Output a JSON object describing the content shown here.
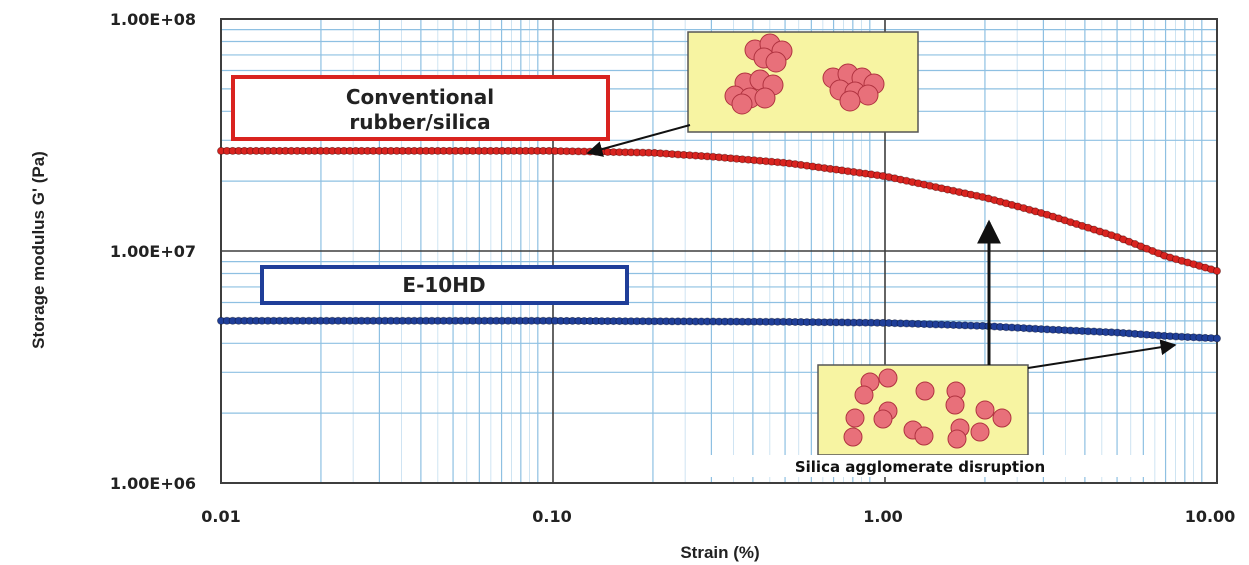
{
  "chart_data": {
    "type": "line",
    "xlabel": "Strain (%)",
    "ylabel": "Storage modulus G' (Pa)",
    "x_scale": "log",
    "y_scale": "log",
    "xlim": [
      0.01,
      10.0
    ],
    "ylim": [
      1000000,
      100000000
    ],
    "x_ticks": [
      "0.01",
      "0.10",
      "1.00",
      "10.00"
    ],
    "y_ticks": [
      "1.00E+08",
      "1.00E+07",
      "1.00E+06"
    ],
    "grid": true,
    "series": [
      {
        "name": "Conventional rubber/silica",
        "color": "#d9231f",
        "points": [
          [
            0.01,
            27000000
          ],
          [
            0.02,
            27000000
          ],
          [
            0.05,
            27000000
          ],
          [
            0.1,
            27000000
          ],
          [
            0.2,
            26500000
          ],
          [
            0.3,
            25500000
          ],
          [
            0.5,
            24000000
          ],
          [
            0.7,
            22500000
          ],
          [
            1.0,
            21000000
          ],
          [
            2.0,
            17000000
          ],
          [
            3.0,
            14500000
          ],
          [
            5.0,
            11500000
          ],
          [
            7.0,
            9500000
          ],
          [
            10.0,
            8200000
          ]
        ]
      },
      {
        "name": "E-10HD",
        "color": "#1f3e99",
        "points": [
          [
            0.01,
            5000000
          ],
          [
            0.1,
            5000000
          ],
          [
            0.5,
            4950000
          ],
          [
            1.0,
            4900000
          ],
          [
            2.0,
            4750000
          ],
          [
            3.0,
            4600000
          ],
          [
            5.0,
            4450000
          ],
          [
            7.0,
            4300000
          ],
          [
            10.0,
            4200000
          ]
        ]
      }
    ],
    "annotations": {
      "conventional_label": [
        "Conventional",
        "rubber/silica"
      ],
      "e10hd_label": "E-10HD",
      "disruption_caption": "Silica agglomerate disruption"
    }
  },
  "colors": {
    "plot_bg": "#ffffff",
    "grid_minor": "#8ec0e2",
    "grid_major": "#3e3e3e",
    "inset_bg": "#f7f4a2",
    "particle_fill": "#e8707a",
    "particle_stroke": "#b03340",
    "red_box": "#d9231f",
    "blue_box": "#1f3e99"
  }
}
